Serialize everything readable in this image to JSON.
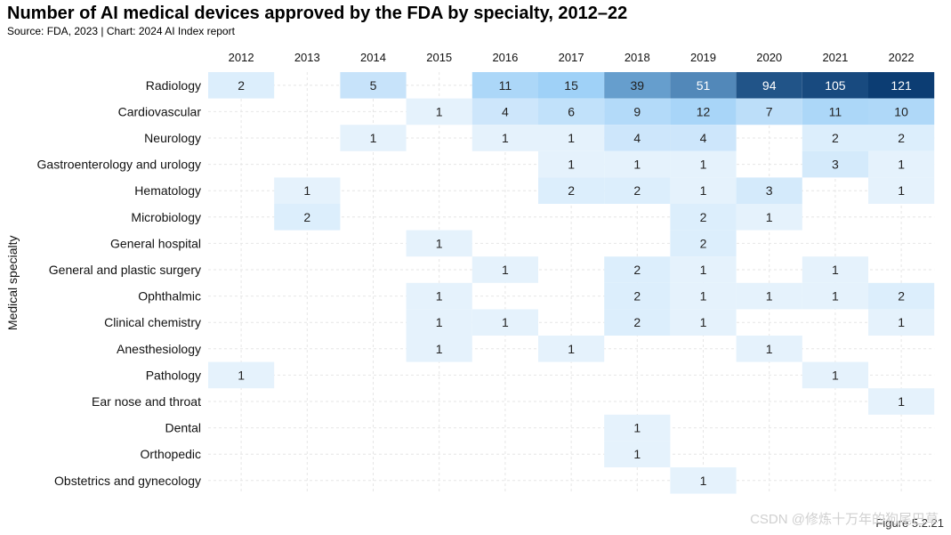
{
  "chart_data": {
    "type": "heatmap",
    "title": "Number of AI medical devices approved by the FDA by specialty, 2012–22",
    "subtitle": "Source: FDA, 2023 | Chart: 2024 AI Index report",
    "ylabel": "Medical specialty",
    "xlabel": "",
    "x": [
      "2012",
      "2013",
      "2014",
      "2015",
      "2016",
      "2017",
      "2018",
      "2019",
      "2020",
      "2021",
      "2022"
    ],
    "y": [
      "Radiology",
      "Cardiovascular",
      "Neurology",
      "Gastroenterology and urology",
      "Hematology",
      "Microbiology",
      "General hospital",
      "General and plastic surgery",
      "Ophthalmic",
      "Clinical chemistry",
      "Anesthesiology",
      "Pathology",
      "Ear nose and throat",
      "Dental",
      "Orthopedic",
      "Obstetrics and gynecology"
    ],
    "values": [
      [
        2,
        null,
        5,
        null,
        11,
        15,
        39,
        51,
        94,
        105,
        121
      ],
      [
        null,
        null,
        null,
        1,
        4,
        6,
        9,
        12,
        7,
        11,
        10
      ],
      [
        null,
        null,
        1,
        null,
        1,
        1,
        4,
        4,
        null,
        2,
        2
      ],
      [
        null,
        null,
        null,
        null,
        null,
        1,
        1,
        1,
        null,
        3,
        1
      ],
      [
        null,
        1,
        null,
        null,
        null,
        2,
        2,
        1,
        3,
        null,
        1
      ],
      [
        null,
        2,
        null,
        null,
        null,
        null,
        null,
        2,
        1,
        null,
        null
      ],
      [
        null,
        null,
        null,
        1,
        null,
        null,
        null,
        2,
        null,
        null,
        null
      ],
      [
        null,
        null,
        null,
        null,
        1,
        null,
        2,
        1,
        null,
        1,
        null
      ],
      [
        null,
        null,
        null,
        1,
        null,
        null,
        2,
        1,
        1,
        1,
        2
      ],
      [
        null,
        null,
        null,
        1,
        1,
        null,
        2,
        1,
        null,
        null,
        1
      ],
      [
        null,
        null,
        null,
        1,
        null,
        1,
        null,
        null,
        1,
        null,
        null
      ],
      [
        1,
        null,
        null,
        null,
        null,
        null,
        null,
        null,
        null,
        1,
        null
      ],
      [
        null,
        null,
        null,
        null,
        null,
        null,
        null,
        null,
        null,
        null,
        1
      ],
      [
        null,
        null,
        null,
        null,
        null,
        null,
        1,
        null,
        null,
        null,
        null
      ],
      [
        null,
        null,
        null,
        null,
        null,
        null,
        1,
        null,
        null,
        null,
        null
      ],
      [
        null,
        null,
        null,
        null,
        null,
        null,
        null,
        1,
        null,
        null,
        null
      ]
    ],
    "color_range": [
      0,
      121
    ]
  },
  "colors": {
    "low": "#eef6fd",
    "mid": "#8fc9f6",
    "high": "#0c3d73",
    "grid": "#e6e6e6"
  },
  "footer": "Figure 5.2.21",
  "watermark": "CSDN @修炼十万年的狗尾巴草"
}
